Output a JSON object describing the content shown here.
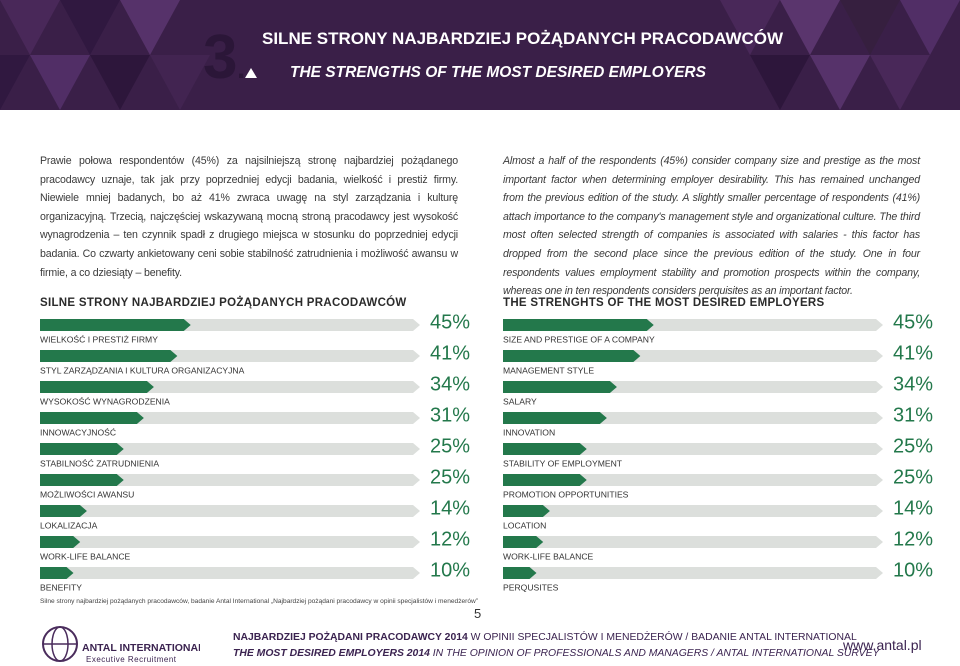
{
  "header": {
    "section_number": "3",
    "title_pl": "SILNE STRONY NAJBARDZIEJ POŻĄDANYCH PRACODAWCÓW",
    "title_en": "THE STRENGTHS OF THE MOST DESIRED EMPLOYERS"
  },
  "intro": {
    "pl": "Prawie połowa respondentów (45%) za najsilniejszą stronę najbardziej pożądanego pracodawcy uznaje, tak jak przy poprzedniej edycji badania, wielkość i prestiż firmy. Niewiele mniej badanych, bo aż 41% zwraca uwagę na styl zarządzania i kulturę organizacyjną. Trzecią, najczęściej wskazywaną mocną stroną pracodawcy jest wysokość wynagrodzenia – ten czynnik spadł z drugiego miejsca w stosunku do poprzedniej edycji badania. Co czwarty ankietowany ceni sobie stabilność zatrudnienia i możliwość awansu w firmie, a co dziesiąty – benefity.",
    "en": "Almost a half of the respondents (45%) consider company size and prestige as the most important factor when determining employer desirability. This has remained unchanged from the previous edition of the study. A slightly smaller percentage of respondents (41%) attach importance to the company's management style and organizational culture. The third most often selected strength of companies is associated with salaries - this factor has dropped from the second place since the previous edition of the study. One in four respondents values employment stability and promotion prospects within the company, whereas one in ten respondents considers perquisites as an important factor."
  },
  "chart_data": [
    {
      "type": "bar",
      "title": "SILNE STRONY NAJBARDZIEJ POŻĄDANYCH PRACODAWCÓW",
      "categories": [
        "WIELKOŚĆ I PRESTIŻ FIRMY",
        "STYL ZARZĄDZANIA I KULTURA ORGANIZACYJNA",
        "WYSOKOŚĆ WYNAGRODZENIA",
        "INNOWACYJNOŚĆ",
        "STABILNOŚĆ ZATRUDNIENIA",
        "MOŻLIWOŚCI AWANSU",
        "LOKALIZACJA",
        "WORK-LIFE BALANCE",
        "BENEFITY"
      ],
      "values": [
        45,
        41,
        34,
        31,
        25,
        25,
        14,
        12,
        10
      ],
      "value_labels": [
        "45%",
        "41%",
        "34%",
        "31%",
        "25%",
        "25%",
        "14%",
        "12%",
        "10%"
      ],
      "color": "#23784b"
    },
    {
      "type": "bar",
      "title": "THE STRENGHTS OF THE MOST DESIRED EMPLOYERS",
      "categories": [
        "SIZE AND PRESTIGE OF A COMPANY",
        "MANAGEMENT STYLE",
        "SALARY",
        "INNOVATION",
        "STABILITY OF EMPLOYMENT",
        "PROMOTION OPPORTUNITIES",
        "LOCATION",
        "WORK-LIFE BALANCE",
        "PERQUSITES"
      ],
      "values": [
        45,
        41,
        34,
        31,
        25,
        25,
        14,
        12,
        10
      ],
      "value_labels": [
        "45%",
        "41%",
        "34%",
        "31%",
        "25%",
        "25%",
        "14%",
        "12%",
        "10%"
      ],
      "color": "#23784b"
    }
  ],
  "source_note": "Silne strony najbardziej pożądanych pracodawców, badanie Antal International „Najbardziej pożądani pracodawcy w opinii specjalistów i menedżerów”",
  "page_number": "5",
  "footer": {
    "logo_name": "ANTAL INTERNATIONAL",
    "logo_tagline": "Executive Recruitment",
    "line_pl_bold": "NAJBARDZIEJ POŻĄDANI PRACODAWCY 2014",
    "line_pl_rest": " W OPINII SPECJALISTÓW I MENEDŻERÓW / BADANIE ANTAL INTERNATIONAL",
    "line_en_bold": "THE MOST DESIRED EMPLOYERS 2014",
    "line_en_rest": " IN THE OPINION OF PROFESSIONALS AND MANAGERS / ANTAL INTERNATIONAL SURVEY",
    "website": "www.antal.pl"
  }
}
